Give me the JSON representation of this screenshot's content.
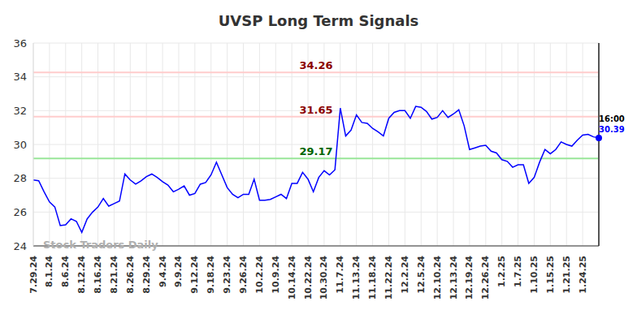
{
  "chart_data": {
    "type": "line",
    "title": "UVSP Long Term Signals",
    "watermark": "Stock Traders Daily",
    "last_time": "16:00",
    "color": "#0000ff",
    "ylim": [
      24,
      36
    ],
    "yticks": [
      24,
      26,
      28,
      30,
      32,
      34,
      36
    ],
    "grid": true,
    "categories": [
      "7.29.24",
      null,
      null,
      "8.1.24",
      null,
      null,
      "8.6.24",
      null,
      null,
      "8.12.24",
      null,
      null,
      "8.16.24",
      null,
      null,
      "8.21.24",
      null,
      null,
      "8.26.24",
      null,
      null,
      "8.29.24",
      null,
      null,
      "9.4.24",
      null,
      null,
      "9.9.24",
      null,
      null,
      "9.12.24",
      null,
      null,
      "9.18.24",
      null,
      null,
      "9.23.24",
      null,
      null,
      "9.26.24",
      null,
      null,
      "10.2.24",
      null,
      null,
      "10.9.24",
      null,
      null,
      "10.14.24",
      null,
      null,
      "10.22.24",
      null,
      null,
      "10.30.24",
      null,
      null,
      "11.7.24",
      null,
      null,
      "11.13.24",
      null,
      null,
      "11.18.24",
      null,
      null,
      "11.22.24",
      null,
      null,
      "12.2.24",
      null,
      null,
      "12.5.24",
      null,
      null,
      "12.10.24",
      null,
      null,
      "12.13.24",
      null,
      null,
      "12.19.24",
      null,
      null,
      "12.26.24",
      null,
      null,
      "1.2.25",
      null,
      null,
      "1.7.25",
      null,
      null,
      "1.10.25",
      null,
      null,
      "1.15.25",
      null,
      null,
      "1.21.25",
      null,
      null,
      "1.24.25",
      null,
      null,
      null
    ],
    "values": [
      27.9,
      27.85,
      27.2,
      26.6,
      26.3,
      25.2,
      25.25,
      25.6,
      25.45,
      24.8,
      25.6,
      26.0,
      26.3,
      26.8,
      26.35,
      26.5,
      26.65,
      28.25,
      27.9,
      27.65,
      27.85,
      28.1,
      28.25,
      28.05,
      27.8,
      27.6,
      27.2,
      27.35,
      27.55,
      27.0,
      27.1,
      27.65,
      27.75,
      28.2,
      28.95,
      28.2,
      27.45,
      27.05,
      26.85,
      27.05,
      27.05,
      27.95,
      26.7,
      26.7,
      26.75,
      26.9,
      27.05,
      26.8,
      27.7,
      27.7,
      28.35,
      27.95,
      27.2,
      28.05,
      28.45,
      28.2,
      28.5,
      32.15,
      30.5,
      30.85,
      31.75,
      31.3,
      31.25,
      30.95,
      30.75,
      30.5,
      31.55,
      31.9,
      32.0,
      32.0,
      31.55,
      32.25,
      32.2,
      31.95,
      31.5,
      31.6,
      32.0,
      31.6,
      31.8,
      32.05,
      31.1,
      29.7,
      29.8,
      29.9,
      29.95,
      29.6,
      29.5,
      29.1,
      29.0,
      28.65,
      28.8,
      28.8,
      27.7,
      28.05,
      28.95,
      29.7,
      29.45,
      29.7,
      30.15,
      30.0,
      29.9,
      30.25,
      30.55,
      30.6,
      30.45,
      30.39
    ],
    "reference_lines": [
      {
        "value": 34.26,
        "color": "#ffcccc",
        "label_color": "#8b0000"
      },
      {
        "value": 31.65,
        "color": "#ffcccc",
        "label_color": "#8b0000"
      },
      {
        "value": 29.17,
        "color": "#99e699",
        "label_color": "#006400"
      }
    ]
  }
}
